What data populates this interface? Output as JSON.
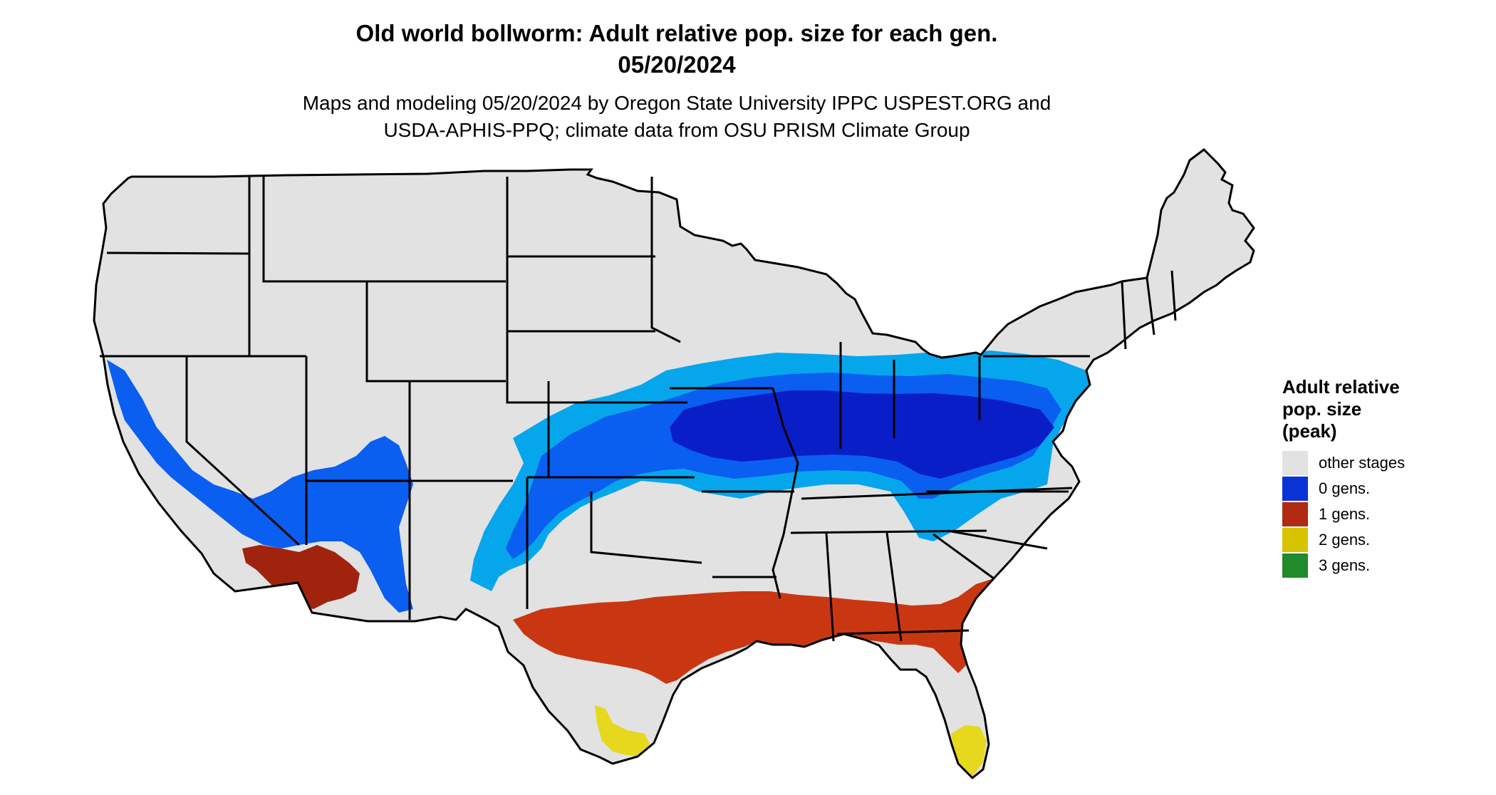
{
  "title_line1": "Old world bollworm: Adult relative pop. size for each gen.",
  "title_line2": "05/20/2024",
  "subtitle_line1": "Maps and modeling 05/20/2024 by Oregon State University IPPC USPEST.ORG and",
  "subtitle_line2": "USDA-APHIS-PPQ; climate data from OSU PRISM Climate Group",
  "legend": {
    "title_lines": [
      "Adult relative",
      "pop. size",
      "(peak)"
    ],
    "items": [
      {
        "label": "other stages",
        "color": "#e2e2e2"
      },
      {
        "label": "0 gens.",
        "color": "#0a33d6"
      },
      {
        "label": "1 gens.",
        "color": "#b02a14"
      },
      {
        "label": "2 gens.",
        "color": "#d8c300"
      },
      {
        "label": "3 gens.",
        "color": "#218a2a"
      }
    ]
  },
  "map_colors": {
    "land": "#e2e2e2",
    "light_blue": "#06a6ec",
    "mid_blue": "#0a5ef0",
    "dark_blue": "#0a1ec8",
    "red": "#c93712",
    "dark_red": "#a0230e",
    "yellow": "#e6d81c",
    "borders": "#000000"
  }
}
